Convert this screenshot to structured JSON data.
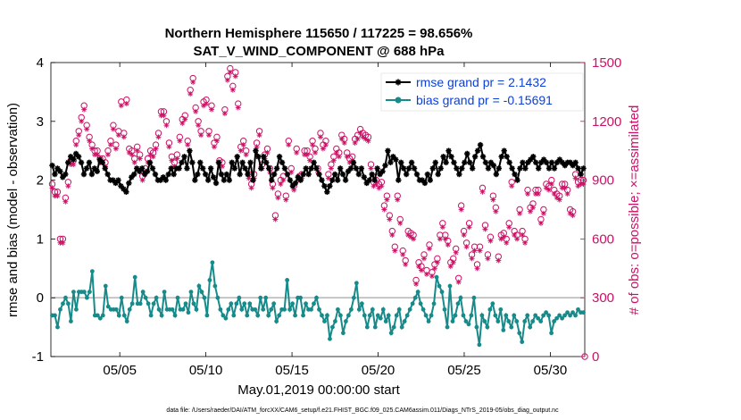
{
  "chart_data": {
    "type": "line",
    "title": "Northern Hemisphere 115650 / 117225 = 98.656%",
    "subtitle": "SAT_V_WIND_COMPONENT @ 688 hPa",
    "xlabel": "May.01,2019 00:00:00 start",
    "ylabel_left": "rmse and bias (model - observation)",
    "ylabel_right": "# of obs: o=possible; ×=assimilated",
    "footnote": "data file: /Users/raeder/DAI/ATM_forcXX/CAM6_setup/f.e21.FHIST_BGC.f09_025.CAM6assim.011/Diags_NTrS_2019-05/obs_diag_output.nc",
    "x_range": [
      1,
      32
    ],
    "ylim_left": [
      -1,
      4
    ],
    "ylim_right": [
      0,
      1500
    ],
    "x_ticks": [
      {
        "value": 5,
        "label": "05/05"
      },
      {
        "value": 10,
        "label": "05/10"
      },
      {
        "value": 15,
        "label": "05/15"
      },
      {
        "value": 20,
        "label": "05/20"
      },
      {
        "value": 25,
        "label": "05/25"
      },
      {
        "value": 30,
        "label": "05/30"
      }
    ],
    "y_ticks_left": [
      "-1",
      "0",
      "1",
      "2",
      "3",
      "4"
    ],
    "y_ticks_right": [
      "0",
      "300",
      "600",
      "900",
      "1200",
      "1500"
    ],
    "zero_line": 0,
    "legend": {
      "position": "top-right",
      "entries": [
        "rmse grand pr = 2.1432",
        "bias grand pr = -0.15691"
      ]
    },
    "colors": {
      "rmse": "#000000",
      "bias": "#178a8a",
      "obs": "#cc1166",
      "legend_text": "#0b3fd6",
      "zero_line": "#bbbbbb"
    },
    "series": [
      {
        "name": "rmse",
        "axis": "left",
        "values": [
          2.25,
          2.1,
          2.2,
          2.15,
          2.05,
          2.1,
          2.3,
          2.4,
          2.35,
          2.45,
          2.4,
          2.3,
          2.1,
          2.2,
          2.3,
          2.1,
          2.2,
          2.15,
          2.35,
          2.3,
          2.2,
          2.1,
          2.0,
          2.0,
          1.95,
          2.0,
          1.9,
          1.85,
          1.8,
          1.95,
          2.05,
          2.1,
          2.2,
          2.15,
          2.2,
          2.1,
          2.15,
          2.3,
          2.2,
          2.1,
          2.0,
          2.0,
          2.05,
          2.0,
          2.1,
          2.2,
          2.1,
          2.2,
          2.2,
          2.3,
          2.4,
          2.2,
          2.5,
          2.3,
          2.0,
          2.1,
          2.3,
          2.2,
          2.1,
          2.0,
          2.2,
          2.05,
          1.95,
          2.3,
          2.1,
          2.0,
          2.1,
          2.0,
          2.3,
          2.2,
          2.4,
          2.1,
          2.3,
          2.2,
          2.1,
          2.3,
          2.0,
          2.5,
          2.4,
          2.2,
          2.4,
          2.3,
          2.2,
          2.0,
          2.1,
          2.2,
          2.4,
          2.3,
          2.2,
          2.1,
          2.0,
          1.9,
          1.95,
          2.05,
          2.0,
          2.1,
          2.2,
          2.1,
          2.2,
          2.3,
          2.2,
          2.1,
          2.0,
          1.9,
          1.8,
          1.9,
          2.0,
          2.1,
          2.0,
          2.2,
          2.1,
          2.0,
          2.15,
          2.2,
          2.3,
          2.2,
          2.1,
          2.2,
          2.05,
          1.95,
          2.0,
          2.1,
          2.0,
          2.2,
          2.1,
          2.15,
          2.25,
          2.5,
          2.3,
          2.4,
          2.35,
          2.0,
          2.3,
          2.2,
          2.1,
          2.2,
          2.3,
          2.2,
          2.1,
          2.0,
          2.0,
          1.95,
          2.1,
          2.0,
          2.2,
          2.3,
          2.1,
          2.2,
          2.4,
          2.3,
          2.5,
          2.4,
          2.3,
          2.2,
          2.1,
          2.2,
          2.3,
          2.45,
          2.3,
          2.2,
          2.4,
          2.5,
          2.6,
          2.4,
          2.3,
          2.2,
          2.3,
          2.25,
          2.1,
          2.2,
          2.4,
          2.5,
          2.4,
          2.3,
          2.2,
          2.1,
          2.0,
          2.2,
          2.3,
          2.2,
          2.3,
          2.35,
          2.4,
          2.3,
          2.2,
          2.3,
          2.35,
          2.3,
          2.2,
          2.3,
          2.2,
          2.3,
          2.35,
          2.3,
          2.25,
          2.3,
          2.3,
          2.25,
          2.3,
          2.2,
          2.1,
          2.2
        ]
      },
      {
        "name": "bias",
        "axis": "left",
        "values": [
          -0.3,
          -0.3,
          -0.5,
          -0.2,
          -0.1,
          0.0,
          -0.1,
          -0.4,
          0.1,
          -0.2,
          0.1,
          0.1,
          0.1,
          0.0,
          0.1,
          0.45,
          -0.3,
          -0.3,
          -0.35,
          -0.3,
          0.2,
          -0.15,
          -0.2,
          -0.2,
          -0.2,
          -0.3,
          0.0,
          -0.3,
          -0.4,
          -0.2,
          -0.1,
          0.35,
          -0.1,
          -0.1,
          0.1,
          0.0,
          -0.1,
          -0.3,
          -0.1,
          0.0,
          -0.2,
          -0.3,
          0.1,
          -0.2,
          -0.2,
          -0.2,
          -0.3,
          0.0,
          -0.2,
          -0.2,
          -0.1,
          -0.25,
          0.1,
          -0.1,
          -0.2,
          0.2,
          0.1,
          0.0,
          -0.3,
          0.3,
          0.6,
          0.2,
          0.0,
          -0.2,
          -0.3,
          -0.35,
          -0.2,
          -0.1,
          -0.3,
          -0.1,
          0.0,
          -0.2,
          -0.1,
          -0.3,
          -0.1,
          -0.2,
          -0.2,
          -0.3,
          0.0,
          -0.2,
          0.0,
          -0.3,
          -0.2,
          -0.1,
          -0.4,
          -0.3,
          -0.2,
          -0.2,
          0.3,
          -0.2,
          -0.1,
          -0.3,
          0.0,
          0.0,
          -0.3,
          -0.1,
          -0.2,
          -0.2,
          -0.1,
          0.0,
          -0.2,
          -0.3,
          -0.4,
          -0.3,
          -0.7,
          -0.5,
          -0.4,
          -0.2,
          -0.3,
          -0.6,
          -0.4,
          -0.3,
          -0.2,
          0.0,
          0.25,
          -0.2,
          -0.1,
          -0.3,
          -0.5,
          -0.3,
          -0.2,
          -0.5,
          -0.3,
          -0.35,
          -0.2,
          -0.4,
          -0.3,
          -0.6,
          -0.5,
          -0.3,
          -0.2,
          -0.5,
          -0.4,
          -0.3,
          -0.2,
          -0.1,
          0.0,
          0.1,
          -0.1,
          -0.2,
          -0.3,
          -0.4,
          -0.3,
          -0.1,
          0.35,
          0.2,
          0.1,
          -0.2,
          -0.5,
          0.2,
          -0.4,
          -0.3,
          -0.1,
          0.0,
          -0.3,
          -0.4,
          -0.45,
          -0.3,
          0.0,
          -0.5,
          -0.8,
          -0.3,
          -0.4,
          -0.5,
          -0.2,
          -0.1,
          -0.3,
          -0.4,
          -0.2,
          -0.55,
          -0.3,
          -0.4,
          -0.5,
          -0.3,
          -0.4,
          -0.6,
          -0.75,
          -0.4,
          -0.3,
          -0.5,
          -0.4,
          -0.3,
          -0.35,
          -0.4,
          -0.3,
          -0.25,
          -0.3,
          -0.6,
          -0.4,
          -0.35,
          -0.3,
          -0.35,
          -0.3,
          -0.25,
          -0.3,
          -0.25,
          -0.3,
          -0.2,
          -0.25,
          -0.25
        ]
      },
      {
        "name": "obs_possible",
        "axis": "right",
        "values": [
          880,
          840,
          840,
          600,
          600,
          810,
          890,
          1000,
          1000,
          1100,
          1150,
          1220,
          1280,
          1180,
          1120,
          1080,
          1050,
          1050,
          1010,
          1010,
          990,
          1050,
          1100,
          1180,
          1080,
          1150,
          1300,
          1140,
          1310,
          1060,
          1050,
          1010,
          1070,
          1030,
          920,
          960,
          1010,
          1050,
          1040,
          1080,
          1140,
          1250,
          1250,
          1200,
          1090,
          1020,
          990,
          1030,
          1120,
          1210,
          1230,
          1100,
          1360,
          1420,
          1270,
          1200,
          1150,
          1300,
          1310,
          1150,
          1280,
          1090,
          1120,
          1000,
          990,
          1260,
          1430,
          1470,
          1380,
          1450,
          1290,
          1070,
          1100,
          1050,
          930,
          880,
          930,
          1090,
          1150,
          980,
          1030,
          1060,
          960,
          880,
          720,
          830,
          900,
          920,
          820,
          1100,
          960,
          870,
          1060,
          920,
          930,
          1050,
          1050,
          1020,
          1100,
          1060,
          960,
          1140,
          1080,
          1100,
          930,
          980,
          1020,
          1060,
          1040,
          1130,
          1110,
          1040,
          1010,
          1020,
          1110,
          1130,
          1160,
          1140,
          1130,
          1120,
          980,
          890,
          900,
          880,
          890,
          770,
          820,
          720,
          640,
          560,
          820,
          700,
          540,
          490,
          640,
          630,
          620,
          390,
          480,
          460,
          520,
          440,
          570,
          430,
          470,
          500,
          620,
          680,
          620,
          590,
          480,
          500,
          550,
          400,
          770,
          640,
          580,
          680,
          520,
          560,
          470,
          560,
          860,
          670,
          520,
          610,
          820,
          760,
          510,
          620,
          630,
          600,
          680,
          890,
          640,
          620,
          750,
          640,
          600,
          850,
          760,
          780,
          850,
          850,
          700,
          750,
          880,
          870,
          900,
          850,
          830,
          820,
          880,
          880,
          850,
          750,
          740,
          930,
          890,
          900,
          900
        ]
      },
      {
        "name": "obs_assimilated",
        "axis": "right",
        "values": [
          860,
          820,
          820,
          580,
          580,
          790,
          870,
          980,
          980,
          1080,
          1130,
          1200,
          1260,
          1160,
          1100,
          1060,
          1030,
          1030,
          990,
          990,
          970,
          1030,
          1080,
          1160,
          1060,
          1130,
          1280,
          1120,
          1290,
          1040,
          1030,
          990,
          1050,
          1010,
          900,
          940,
          990,
          1030,
          1020,
          1060,
          1120,
          1230,
          1230,
          1180,
          1070,
          1000,
          970,
          1010,
          1100,
          1190,
          1210,
          1080,
          1340,
          1400,
          1250,
          1180,
          1130,
          1280,
          1290,
          1130,
          1260,
          1070,
          1100,
          980,
          970,
          1240,
          1410,
          1450,
          1360,
          1430,
          1270,
          1050,
          1080,
          1030,
          910,
          860,
          910,
          1070,
          1130,
          960,
          1010,
          1040,
          940,
          860,
          700,
          810,
          880,
          900,
          800,
          1080,
          940,
          850,
          1040,
          900,
          910,
          1030,
          1030,
          1000,
          1080,
          1040,
          940,
          1120,
          1060,
          1080,
          910,
          960,
          1000,
          1040,
          1020,
          1110,
          1090,
          1020,
          990,
          1000,
          1090,
          1110,
          1140,
          1120,
          1110,
          1100,
          960,
          870,
          880,
          860,
          870,
          750,
          800,
          700,
          620,
          540,
          800,
          680,
          520,
          470,
          620,
          610,
          600,
          370,
          460,
          440,
          500,
          420,
          550,
          410,
          450,
          480,
          600,
          660,
          600,
          570,
          460,
          480,
          530,
          380,
          750,
          620,
          560,
          660,
          500,
          540,
          450,
          540,
          840,
          650,
          500,
          590,
          800,
          740,
          490,
          600,
          610,
          580,
          660,
          870,
          620,
          600,
          730,
          620,
          580,
          830,
          740,
          760,
          830,
          830,
          680,
          730,
          860,
          850,
          880,
          830,
          810,
          800,
          860,
          860,
          830,
          730,
          720,
          910,
          870,
          880,
          880
        ]
      }
    ],
    "obs_final_point": {
      "x": 32,
      "possible": 0
    }
  }
}
